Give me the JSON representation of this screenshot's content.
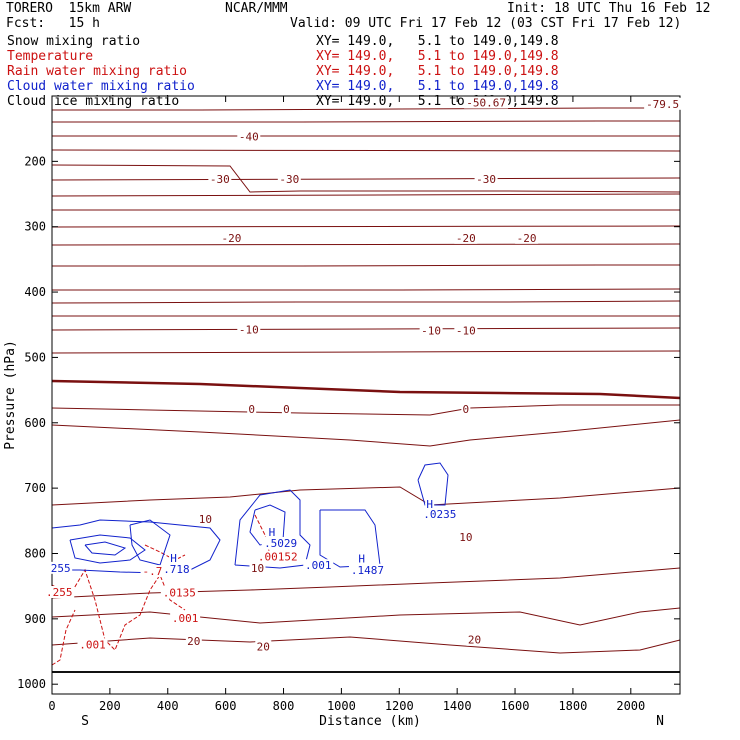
{
  "header": {
    "model": "TORERO  15km ARW",
    "center": "NCAR/MMM",
    "init": "Init: 18 UTC Thu 16 Feb 12",
    "fcst": "Fcst:   15 h",
    "valid": "Valid: 09 UTC Fri 17 Feb 12 (03 CST Fri 17 Feb 12)"
  },
  "legend": [
    {
      "label": "Snow mixing ratio",
      "xy": "XY= 149.0,   5.1 to 149.0,149.8",
      "color": "#000000"
    },
    {
      "label": "Temperature",
      "xy": "XY= 149.0,   5.1 to 149.0,149.8",
      "color": "#cc1111"
    },
    {
      "label": "Rain water mixing ratio",
      "xy": "XY= 149.0,   5.1 to 149.0,149.8",
      "color": "#cc1111"
    },
    {
      "label": "Cloud water mixing ratio",
      "xy": "XY= 149.0,   5.1 to 149.0,149.8",
      "color": "#1122cc"
    },
    {
      "label": "Cloud ice mixing ratio",
      "xy": "XY= 149.0,   5.1 to 149.0,149.8",
      "color": "#000000"
    }
  ],
  "chart_data": {
    "type": "cross-section-contour",
    "xlabel": "Distance (km)",
    "ylabel": "Pressure (hPa)",
    "xlim": [
      0,
      2170
    ],
    "ylim": [
      1015,
      100
    ],
    "x_ticks": [
      0,
      200,
      400,
      600,
      800,
      1000,
      1200,
      1400,
      1600,
      1800,
      2000
    ],
    "y_ticks": [
      200,
      300,
      400,
      500,
      600,
      700,
      800,
      900,
      1000
    ],
    "end_labels": {
      "left": "S",
      "right": "N"
    },
    "temperature_labels": [
      {
        "text": "-79.5",
        "x": 2110,
        "p": 115
      },
      {
        "text": "-50.67",
        "x": 1500,
        "p": 113
      },
      {
        "text": "-40",
        "x": 680,
        "p": 165
      },
      {
        "text": "-30",
        "x": 580,
        "p": 230
      },
      {
        "text": "-30",
        "x": 820,
        "p": 230
      },
      {
        "text": "-30",
        "x": 1500,
        "p": 230
      },
      {
        "text": "-20",
        "x": 620,
        "p": 320
      },
      {
        "text": "-20",
        "x": 1430,
        "p": 320
      },
      {
        "text": "-20",
        "x": 1640,
        "p": 320
      },
      {
        "text": "-10",
        "x": 680,
        "p": 460
      },
      {
        "text": "-10",
        "x": 1310,
        "p": 462
      },
      {
        "text": "-10",
        "x": 1430,
        "p": 462
      },
      {
        "text": "0",
        "x": 690,
        "p": 582
      },
      {
        "text": "0",
        "x": 810,
        "p": 582
      },
      {
        "text": "0",
        "x": 1430,
        "p": 582
      },
      {
        "text": "10",
        "x": 530,
        "p": 750
      },
      {
        "text": "10",
        "x": 710,
        "p": 825
      },
      {
        "text": "10",
        "x": 1430,
        "p": 778
      },
      {
        "text": "20",
        "x": 490,
        "p": 937
      },
      {
        "text": "20",
        "x": 730,
        "p": 945
      },
      {
        "text": "20",
        "x": 1460,
        "p": 935
      }
    ],
    "rain_labels": [
      {
        "text": ".001",
        "x": 140,
        "p": 942
      },
      {
        "text": ".001",
        "x": 460,
        "p": 902
      },
      {
        "text": ".0135",
        "x": 440,
        "p": 863
      },
      {
        "text": "H",
        "x": 740,
        "p": 788
      },
      {
        "text": ".00152",
        "x": 780,
        "p": 808
      },
      {
        "text": "-.718",
        "x": 370,
        "p": 830
      },
      {
        "text": ".255",
        "x": 25,
        "p": 862
      }
    ],
    "cloud_water_labels": [
      {
        "text": "255",
        "x": 30,
        "p": 825
      },
      {
        "text": "H",
        "x": 420,
        "p": 810
      },
      {
        "text": ".718",
        "x": 430,
        "p": 827
      },
      {
        "text": "H",
        "x": 760,
        "p": 770
      },
      {
        "text": ".5029",
        "x": 790,
        "p": 787
      },
      {
        "text": ".001",
        "x": 920,
        "p": 821
      },
      {
        "text": "H",
        "x": 1070,
        "p": 811
      },
      {
        "text": ".1487",
        "x": 1090,
        "p": 828
      },
      {
        "text": "H",
        "x": 1305,
        "p": 727
      },
      {
        "text": ".0235",
        "x": 1340,
        "p": 743
      }
    ]
  }
}
